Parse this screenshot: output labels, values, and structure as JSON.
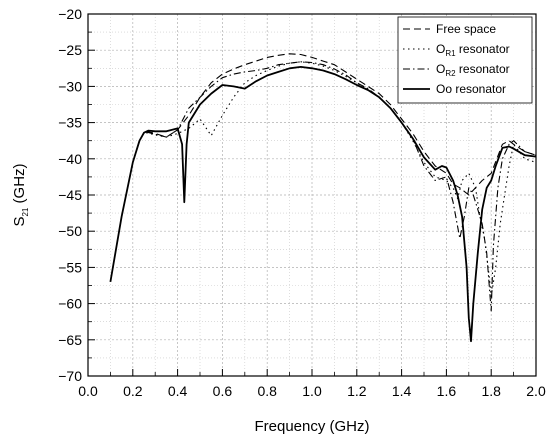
{
  "chart_data": {
    "type": "line",
    "title": "",
    "xlabel": "Frequency (GHz)",
    "ylabel": {
      "main": "S",
      "sub": "21",
      "rest": " (GHz)"
    },
    "xlim": [
      0.0,
      2.0
    ],
    "ylim": [
      -70,
      -20
    ],
    "x_ticks": [
      0.0,
      0.2,
      0.4,
      0.6,
      0.8,
      1.0,
      1.2,
      1.4,
      1.6,
      1.8,
      2.0
    ],
    "x_tick_labels": [
      "0.0",
      "0.2",
      "0.4",
      "0.6",
      "0.8",
      "1.0",
      "1.2",
      "1.4",
      "1.6",
      "1.8",
      "2.0"
    ],
    "y_ticks": [
      -70,
      -65,
      -60,
      -55,
      -50,
      -45,
      -40,
      -35,
      -30,
      -25,
      -20
    ],
    "y_tick_labels": [
      "−70",
      "−65",
      "−60",
      "−55",
      "−50",
      "−45",
      "−40",
      "−35",
      "−30",
      "−25",
      "−20"
    ],
    "grid": {
      "major": true,
      "minor": true,
      "style": "dotted"
    },
    "legend_position": "top-right",
    "series": [
      {
        "name": "Free space",
        "label": {
          "main": "Free space"
        },
        "dash": "dashed",
        "color": "#000000",
        "x": [
          0.26,
          0.3,
          0.35,
          0.4,
          0.45,
          0.5,
          0.55,
          0.6,
          0.65,
          0.7,
          0.75,
          0.8,
          0.85,
          0.9,
          0.95,
          1.0,
          1.05,
          1.1,
          1.15,
          1.2,
          1.25,
          1.3,
          1.35,
          1.4,
          1.45,
          1.5,
          1.55,
          1.6,
          1.63,
          1.66,
          1.7,
          1.73,
          1.76,
          1.8,
          1.85,
          1.88,
          1.9,
          1.95,
          2.0
        ],
        "y": [
          -36.2,
          -36.5,
          -37.0,
          -36.0,
          -34.0,
          -31.5,
          -29.5,
          -28.3,
          -27.6,
          -27.0,
          -26.5,
          -26.0,
          -25.7,
          -25.5,
          -25.6,
          -26.0,
          -26.5,
          -27.0,
          -28.0,
          -29.0,
          -30.0,
          -31.0,
          -32.5,
          -34.5,
          -36.5,
          -39.0,
          -41.0,
          -42.0,
          -43.5,
          -44.0,
          -45.0,
          -44.0,
          -43.0,
          -42.0,
          -38.0,
          -37.5,
          -38.0,
          -39.0,
          -39.5
        ]
      },
      {
        "name": "OR1 resonator",
        "label": {
          "main": "O",
          "sub": "R1",
          "rest": " resonator"
        },
        "dash": "dotted",
        "color": "#000000",
        "x": [
          0.26,
          0.3,
          0.35,
          0.4,
          0.45,
          0.5,
          0.55,
          0.6,
          0.65,
          0.7,
          0.75,
          0.8,
          0.85,
          0.9,
          0.95,
          1.0,
          1.05,
          1.1,
          1.15,
          1.2,
          1.25,
          1.3,
          1.35,
          1.4,
          1.45,
          1.5,
          1.55,
          1.6,
          1.63,
          1.65,
          1.67,
          1.7,
          1.73,
          1.75,
          1.77,
          1.79,
          1.8,
          1.82,
          1.84,
          1.86,
          1.88,
          1.9,
          1.95,
          2.0
        ],
        "y": [
          -36.4,
          -36.7,
          -37.0,
          -36.5,
          -35.8,
          -34.5,
          -36.8,
          -34.0,
          -31.5,
          -29.5,
          -28.5,
          -27.8,
          -27.2,
          -26.8,
          -26.6,
          -26.8,
          -27.2,
          -27.8,
          -28.6,
          -29.5,
          -30.5,
          -31.5,
          -33.0,
          -35.0,
          -37.5,
          -40.5,
          -42.5,
          -43.0,
          -44.0,
          -45.5,
          -43.0,
          -42.0,
          -44.0,
          -48.0,
          -51.0,
          -56.0,
          -59.0,
          -55.0,
          -49.0,
          -45.0,
          -41.0,
          -38.0,
          -40.0,
          -40.5
        ]
      },
      {
        "name": "OR2 resonator",
        "label": {
          "main": "O",
          "sub": "R2",
          "rest": " resonator"
        },
        "dash": "dashdot",
        "color": "#000000",
        "x": [
          0.26,
          0.3,
          0.35,
          0.4,
          0.45,
          0.5,
          0.55,
          0.6,
          0.65,
          0.7,
          0.75,
          0.8,
          0.85,
          0.9,
          0.95,
          1.0,
          1.05,
          1.1,
          1.15,
          1.2,
          1.25,
          1.3,
          1.35,
          1.4,
          1.45,
          1.5,
          1.55,
          1.6,
          1.63,
          1.66,
          1.68,
          1.7,
          1.72,
          1.74,
          1.76,
          1.78,
          1.8,
          1.81,
          1.83,
          1.85,
          1.88,
          1.9,
          1.95,
          2.0
        ],
        "y": [
          -36.3,
          -36.6,
          -37.0,
          -36.0,
          -33.0,
          -31.5,
          -30.0,
          -28.8,
          -28.3,
          -28.0,
          -27.8,
          -27.5,
          -27.0,
          -26.8,
          -26.6,
          -26.7,
          -27.0,
          -27.6,
          -28.4,
          -29.5,
          -30.3,
          -31.5,
          -33.0,
          -35.0,
          -37.2,
          -41.0,
          -43.0,
          -42.5,
          -46.0,
          -51.0,
          -48.0,
          -44.0,
          -45.0,
          -47.0,
          -49.0,
          -53.0,
          -61.0,
          -52.0,
          -44.0,
          -40.0,
          -38.0,
          -37.5,
          -39.0,
          -39.5
        ]
      },
      {
        "name": "Oo resonator",
        "label": {
          "main": "Oo  resonator"
        },
        "dash": "solid",
        "color": "#000000",
        "x": [
          0.1,
          0.15,
          0.2,
          0.23,
          0.25,
          0.27,
          0.3,
          0.35,
          0.4,
          0.42,
          0.43,
          0.44,
          0.45,
          0.5,
          0.55,
          0.6,
          0.65,
          0.7,
          0.75,
          0.8,
          0.85,
          0.9,
          0.95,
          1.0,
          1.05,
          1.1,
          1.15,
          1.2,
          1.25,
          1.3,
          1.35,
          1.4,
          1.45,
          1.5,
          1.55,
          1.58,
          1.6,
          1.63,
          1.65,
          1.67,
          1.69,
          1.7,
          1.71,
          1.72,
          1.74,
          1.76,
          1.78,
          1.8,
          1.82,
          1.85,
          1.88,
          1.9,
          1.95,
          2.0
        ],
        "y": [
          -57.0,
          -48.0,
          -40.5,
          -37.5,
          -36.4,
          -36.1,
          -36.2,
          -36.2,
          -35.8,
          -38.0,
          -46.0,
          -38.0,
          -35.0,
          -32.5,
          -31.0,
          -29.8,
          -30.0,
          -30.3,
          -29.3,
          -28.5,
          -28.0,
          -27.5,
          -27.3,
          -27.5,
          -27.8,
          -28.3,
          -29.0,
          -29.8,
          -30.5,
          -31.5,
          -33.0,
          -35.0,
          -37.2,
          -39.8,
          -41.5,
          -41.0,
          -41.2,
          -43.0,
          -45.0,
          -48.0,
          -55.0,
          -62.0,
          -65.2,
          -60.0,
          -53.0,
          -47.0,
          -44.0,
          -43.0,
          -41.0,
          -38.5,
          -38.3,
          -38.6,
          -39.5,
          -39.7
        ]
      }
    ]
  }
}
